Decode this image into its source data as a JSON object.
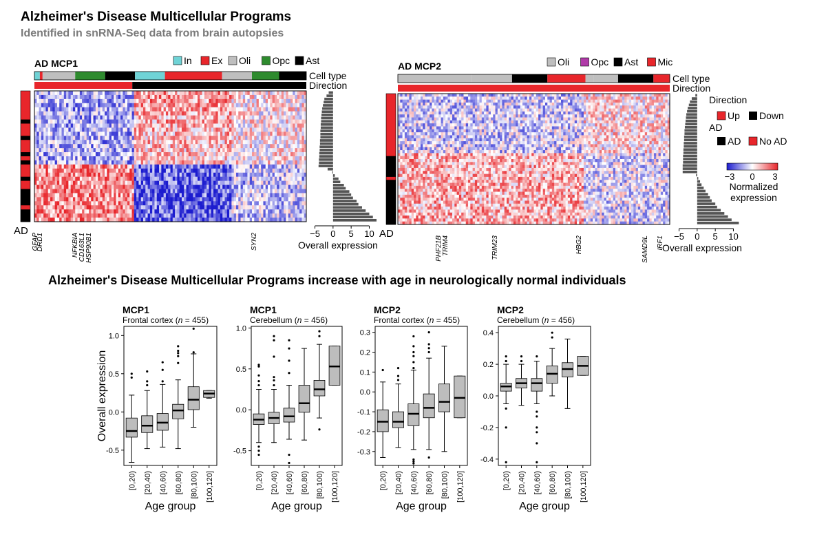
{
  "title": "Alzheimer's Disease Multicellular Programs",
  "subtitle": "Identified in snRNA-Seq data from brain autopsies",
  "section_title": "Alzheimer's Disease Multicellular Programs increase with age in neurologically normal individuals",
  "colors": {
    "In": "#6fd3d6",
    "Ex": "#e8262b",
    "Oli": "#bfbfbf",
    "Opc": "#2e8b2e",
    "Ast": "#000000",
    "Mic": "#e8262b",
    "Opc2": "#b03aa8",
    "up": "#e8262b",
    "down": "#000000",
    "ad": "#000000",
    "noad": "#e8262b",
    "heat_low": "#1c1ccf",
    "heat_mid": "#ffffff",
    "heat_high": "#e8262b",
    "box_fill": "#bdbdbd"
  },
  "legend": {
    "direction_title": "Direction",
    "up": "Up",
    "down": "Down",
    "ad_title": "AD",
    "ad": "AD",
    "noad": "No AD",
    "scale_ticks": [
      "−3",
      "0",
      "3"
    ],
    "scale_label_1": "Normalized",
    "scale_label_2": "expression"
  },
  "panels": [
    {
      "title": "AD MCP1",
      "legend": [
        {
          "key": "In",
          "label": "In"
        },
        {
          "key": "Ex",
          "label": "Ex"
        },
        {
          "key": "Oli",
          "label": "Oli"
        },
        {
          "key": "Opc",
          "label": "Opc"
        },
        {
          "key": "Ast",
          "label": "Ast"
        }
      ],
      "celltype_label": "Cell type",
      "direction_label": "Direction",
      "ad_label": "AD",
      "xlabel": "Overall expression",
      "bar_ticks": [
        "−5",
        "0",
        "5",
        "10"
      ],
      "genes": [
        "GFAP",
        "DRD1",
        "NFKBIA",
        "CD163L1",
        "HSP90B1",
        "SYN2"
      ]
    },
    {
      "title": "AD MCP2",
      "legend": [
        {
          "key": "Oli",
          "label": "Oli"
        },
        {
          "key": "Opc2",
          "label": "Opc"
        },
        {
          "key": "Ast",
          "label": "Ast"
        },
        {
          "key": "Mic",
          "label": "Mic"
        }
      ],
      "celltype_label": "Cell type",
      "direction_label": "Direction",
      "ad_label": "AD",
      "xlabel": "Overall expression",
      "bar_ticks": [
        "−5",
        "0",
        "5",
        "10"
      ],
      "genes": [
        "PHF21B",
        "TRIM4",
        "TRIM23",
        "HBG2",
        "SAMD9L",
        "IRF1"
      ]
    }
  ],
  "chart_data": [
    {
      "type": "heatmap",
      "title": "AD MCP1",
      "celltype_segments": [
        {
          "type": "In",
          "fraction": 0.02
        },
        {
          "type": "Ex",
          "fraction": 0.01
        },
        {
          "type": "Oli",
          "fraction": 0.12
        },
        {
          "type": "Opc",
          "fraction": 0.11
        },
        {
          "type": "Ast",
          "fraction": 0.11
        },
        {
          "type": "In",
          "fraction": 0.11
        },
        {
          "type": "Ex",
          "fraction": 0.21
        },
        {
          "type": "Oli",
          "fraction": 0.11
        },
        {
          "type": "Opc",
          "fraction": 0.1
        },
        {
          "type": "Ast",
          "fraction": 0.1
        }
      ],
      "direction_segments": [
        {
          "dir": "up",
          "fraction": 0.36
        },
        {
          "dir": "down",
          "fraction": 0.64
        }
      ],
      "n_samples": 32,
      "ad_status": [
        "noad",
        "noad",
        "noad",
        "noad",
        "noad",
        "noad",
        "noad",
        "ad",
        "noad",
        "noad",
        "noad",
        "ad",
        "noad",
        "noad",
        "noad",
        "ad",
        "noad",
        "ad",
        "noad",
        "noad",
        "noad",
        "ad",
        "noad",
        "noad",
        "ad",
        "ad",
        "ad",
        "ad",
        "noad",
        "ad",
        "ad",
        "ad"
      ],
      "overall_expression": [
        -1.2,
        -1.8,
        -2.4,
        -2.6,
        -2.8,
        -3.0,
        -3.1,
        -3.2,
        -3.3,
        -3.3,
        -3.4,
        -3.4,
        -3.5,
        -3.5,
        -3.5,
        -3.6,
        -3.6,
        -3.7,
        -3.7,
        -3.8,
        -3.8,
        -3.9,
        -3.9,
        -4.0,
        -1.5,
        -0.2,
        0.5,
        1.5,
        2.0,
        3.0,
        3.5,
        4.5,
        5.0,
        5.5,
        6.5,
        7.0,
        8.0,
        9.0,
        10.0,
        11.0,
        12.0
      ],
      "bar_axis": [
        -7,
        12
      ],
      "color_scale": [
        -3,
        0,
        3
      ],
      "xlabel": "Overall expression"
    },
    {
      "type": "heatmap",
      "title": "AD MCP2",
      "celltype_segments": [
        {
          "type": "Oli",
          "fraction": 0.27
        },
        {
          "type": "Oli2",
          "fraction": 0.15
        },
        {
          "type": "Ast",
          "fraction": 0.13
        },
        {
          "type": "Mic",
          "fraction": 0.14
        },
        {
          "type": "Oli",
          "fraction": 0.03
        },
        {
          "type": "Oli2",
          "fraction": 0.09
        },
        {
          "type": "Ast",
          "fraction": 0.13
        },
        {
          "type": "Mic",
          "fraction": 0.06
        }
      ],
      "direction_segments": [
        {
          "dir": "up",
          "fraction": 1.0
        }
      ],
      "n_samples": 44,
      "ad_status": [
        "noad",
        "noad",
        "noad",
        "noad",
        "noad",
        "noad",
        "noad",
        "noad",
        "noad",
        "noad",
        "noad",
        "noad",
        "noad",
        "noad",
        "noad",
        "noad",
        "noad",
        "noad",
        "noad",
        "noad",
        "noad",
        "ad",
        "ad",
        "ad",
        "ad",
        "ad",
        "ad",
        "ad",
        "noad",
        "ad",
        "ad",
        "ad",
        "ad",
        "ad",
        "ad",
        "ad",
        "ad",
        "ad",
        "ad",
        "ad",
        "ad",
        "ad",
        "ad",
        "ad"
      ],
      "overall_expression": [
        -0.5,
        -1.5,
        -2.0,
        -2.3,
        -2.6,
        -2.8,
        -3.0,
        -3.1,
        -3.2,
        -3.3,
        -3.4,
        -3.5,
        -3.5,
        -3.6,
        -3.6,
        -3.7,
        -3.7,
        -3.8,
        -3.8,
        -3.9,
        -3.9,
        -3.9,
        -4.0,
        -4.0,
        -4.0,
        -0.3,
        0.3,
        0.8,
        1.2,
        1.8,
        2.3,
        3.0,
        3.5,
        4.0,
        5.0,
        5.5,
        6.5,
        7.5,
        8.5,
        9.5,
        11.5
      ],
      "bar_axis": [
        -7,
        12
      ],
      "color_scale": [
        -3,
        0,
        3
      ],
      "xlabel": "Overall expression"
    },
    {
      "type": "box",
      "title": "MCP1",
      "subtitle_pre": "Frontal cortex (",
      "subtitle_n": "n",
      "subtitle_post": " = 455)",
      "categories": [
        "[0,20)",
        "[20,40)",
        "[40,60)",
        "[60,80)",
        "[80,100)",
        "[100,120]"
      ],
      "boxes": [
        {
          "wlo": -0.66,
          "q1": -0.33,
          "med": -0.25,
          "q3": -0.08,
          "whi": 0.22,
          "out": [
            0.45,
            0.5
          ]
        },
        {
          "wlo": -0.48,
          "q1": -0.27,
          "med": -0.18,
          "q3": -0.05,
          "whi": 0.28,
          "out": [
            0.35,
            0.4,
            0.53
          ]
        },
        {
          "wlo": -0.46,
          "q1": -0.24,
          "med": -0.14,
          "q3": -0.02,
          "whi": 0.36,
          "out": [
            0.4,
            0.55,
            0.65
          ]
        },
        {
          "wlo": -0.48,
          "q1": -0.09,
          "med": 0.02,
          "q3": 0.1,
          "whi": 0.42,
          "out": [
            0.64,
            0.73,
            0.77,
            0.8,
            0.86
          ]
        },
        {
          "wlo": -0.2,
          "q1": 0.03,
          "med": 0.16,
          "q3": 0.33,
          "whi": 0.76,
          "out": [
            0.78,
            1.09
          ]
        },
        {
          "wlo": 0.18,
          "q1": 0.19,
          "med": 0.24,
          "q3": 0.28,
          "whi": 0.28,
          "out": []
        }
      ],
      "ylim": [
        -0.7,
        1.12
      ],
      "yticks": [
        -0.5,
        0.0,
        0.5,
        1.0
      ],
      "ylabel": "Overall expression",
      "xlabel": "Age group"
    },
    {
      "type": "box",
      "title": "MCP1",
      "subtitle_pre": "Cerebellum (",
      "subtitle_n": "n",
      "subtitle_post": " = 456)",
      "categories": [
        "[0,20)",
        "[20,40)",
        "[40,60)",
        "[60,80)",
        "[80,100)",
        "[100,120]"
      ],
      "boxes": [
        {
          "wlo": -0.4,
          "q1": -0.18,
          "med": -0.12,
          "q3": -0.05,
          "whi": 0.25,
          "out": [
            -0.55,
            -0.5,
            -0.45,
            0.3,
            0.35,
            0.42,
            0.53,
            0.55
          ]
        },
        {
          "wlo": -0.4,
          "q1": -0.17,
          "med": -0.1,
          "q3": -0.03,
          "whi": 0.25,
          "out": [
            0.3,
            0.36,
            0.4,
            0.65,
            0.85,
            0.9
          ]
        },
        {
          "wlo": -0.36,
          "q1": -0.15,
          "med": -0.08,
          "q3": 0.02,
          "whi": 0.3,
          "out": [
            -0.55,
            -0.65,
            0.45,
            0.6,
            0.75,
            0.85
          ]
        },
        {
          "wlo": -0.37,
          "q1": -0.03,
          "med": 0.08,
          "q3": 0.3,
          "whi": 0.75,
          "out": []
        },
        {
          "wlo": -0.1,
          "q1": 0.17,
          "med": 0.25,
          "q3": 0.36,
          "whi": 0.8,
          "out": [
            -0.24,
            0.9,
            0.96
          ]
        },
        {
          "wlo": 0.3,
          "q1": 0.3,
          "med": 0.53,
          "q3": 0.78,
          "whi": 0.78,
          "out": []
        }
      ],
      "ylim": [
        -0.68,
        1.02
      ],
      "yticks": [
        -0.5,
        0.0,
        0.5,
        1.0
      ],
      "ylabel": "",
      "xlabel": "Age group"
    },
    {
      "type": "box",
      "title": "MCP2",
      "subtitle_pre": "Frontal cortex (",
      "subtitle_n": "n",
      "subtitle_post": " = 455)",
      "categories": [
        "[0,20)",
        "[20,40)",
        "[40,60)",
        "[60,80)",
        "[80,100)",
        "[100,120]"
      ],
      "boxes": [
        {
          "wlo": -0.33,
          "q1": -0.2,
          "med": -0.15,
          "q3": -0.09,
          "whi": 0.05,
          "out": [
            0.11
          ]
        },
        {
          "wlo": -0.28,
          "q1": -0.18,
          "med": -0.15,
          "q3": -0.1,
          "whi": 0.04,
          "out": [
            0.06,
            0.08,
            0.12
          ]
        },
        {
          "wlo": -0.29,
          "q1": -0.17,
          "med": -0.11,
          "q3": -0.06,
          "whi": 0.11,
          "out": [
            -0.34,
            -0.35,
            -0.36,
            0.12,
            0.15,
            0.18,
            0.2,
            0.23,
            0.28
          ]
        },
        {
          "wlo": -0.29,
          "q1": -0.13,
          "med": -0.08,
          "q3": -0.01,
          "whi": 0.17,
          "out": [
            0.2,
            0.22,
            0.24,
            0.3,
            -0.33
          ]
        },
        {
          "wlo": -0.3,
          "q1": -0.1,
          "med": -0.05,
          "q3": 0.04,
          "whi": 0.23,
          "out": []
        },
        {
          "wlo": -0.13,
          "q1": -0.13,
          "med": -0.03,
          "q3": 0.08,
          "whi": 0.08,
          "out": []
        }
      ],
      "ylim": [
        -0.37,
        0.33
      ],
      "yticks": [
        -0.3,
        -0.2,
        -0.1,
        0.0,
        0.1,
        0.2,
        0.3
      ],
      "ylabel": "",
      "xlabel": "Age group"
    },
    {
      "type": "box",
      "title": "MCP2",
      "subtitle_pre": "Cerebellum (",
      "subtitle_n": "n",
      "subtitle_post": " = 456)",
      "categories": [
        "[0,20)",
        "[20,40)",
        "[40,60)",
        "[60,80)",
        "[80,100)",
        "[100,120]"
      ],
      "boxes": [
        {
          "wlo": -0.05,
          "q1": 0.03,
          "med": 0.06,
          "q3": 0.08,
          "whi": 0.2,
          "out": [
            -0.42,
            -0.2,
            -0.08,
            0.22,
            0.25
          ]
        },
        {
          "wlo": -0.06,
          "q1": 0.05,
          "med": 0.08,
          "q3": 0.11,
          "whi": 0.2,
          "out": [
            0.22,
            0.25
          ]
        },
        {
          "wlo": -0.05,
          "q1": 0.03,
          "med": 0.08,
          "q3": 0.11,
          "whi": 0.22,
          "out": [
            0.25,
            -0.1,
            -0.13,
            -0.2,
            -0.23,
            -0.3,
            -0.42
          ]
        },
        {
          "wlo": 0.0,
          "q1": 0.08,
          "med": 0.14,
          "q3": 0.19,
          "whi": 0.3,
          "out": [
            0.37,
            0.4
          ]
        },
        {
          "wlo": -0.08,
          "q1": 0.12,
          "med": 0.17,
          "q3": 0.21,
          "whi": 0.36,
          "out": []
        },
        {
          "wlo": 0.13,
          "q1": 0.13,
          "med": 0.19,
          "q3": 0.25,
          "whi": 0.25,
          "out": []
        }
      ],
      "ylim": [
        -0.44,
        0.44
      ],
      "yticks": [
        -0.4,
        -0.2,
        0.0,
        0.2,
        0.4
      ],
      "ylabel": "",
      "xlabel": "Age group"
    }
  ]
}
